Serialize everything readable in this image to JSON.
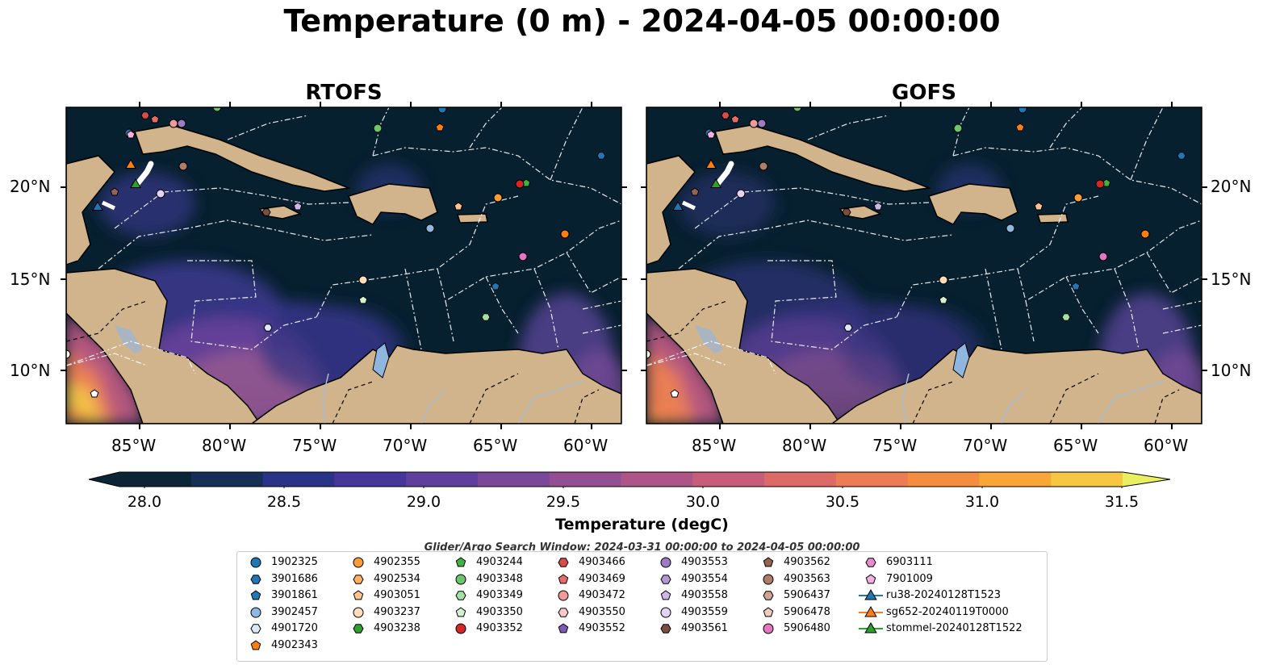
{
  "title": "Temperature (0 m) - 2024-04-05 00:00:00",
  "panels": [
    {
      "title": "RTOFS"
    },
    {
      "title": "GOFS"
    }
  ],
  "axes": {
    "lon_ticks": [
      "85°W",
      "80°W",
      "75°W",
      "70°W",
      "65°W",
      "60°W"
    ],
    "lat_ticks": [
      "20°N",
      "15°N",
      "10°N"
    ]
  },
  "colorbar": {
    "label": "Temperature (degC)",
    "ticks": [
      "28.0",
      "28.5",
      "29.0",
      "29.5",
      "30.0",
      "30.5",
      "31.0",
      "31.5"
    ],
    "colors": [
      "#0b2436",
      "#162f57",
      "#2a3487",
      "#46369a",
      "#5e3f9b",
      "#7a4898",
      "#944f94",
      "#ad5589",
      "#c65d7a",
      "#dc6b67",
      "#ec7c53",
      "#f48d40",
      "#f7a63a",
      "#f7c643",
      "#e9ef5e"
    ]
  },
  "search_window": "Glider/Argo Search Window: 2024-03-31 00:00:00 to 2024-04-05 00:00:00",
  "legend": [
    {
      "label": "1902325",
      "color": "#1f77b4",
      "shape": "circle"
    },
    {
      "label": "3901686",
      "color": "#1f77b4",
      "shape": "hexagon"
    },
    {
      "label": "3901861",
      "color": "#1f77b4",
      "shape": "pentagon"
    },
    {
      "label": "3902457",
      "color": "#8fb9e0",
      "shape": "circle"
    },
    {
      "label": "4901720",
      "color": "#dceaf8",
      "shape": "hexagon"
    },
    {
      "label": "4902343",
      "color": "#ff7f0e",
      "shape": "pentagon"
    },
    {
      "label": "4902355",
      "color": "#ff9b35",
      "shape": "circle"
    },
    {
      "label": "4902534",
      "color": "#ffae62",
      "shape": "hexagon"
    },
    {
      "label": "4903051",
      "color": "#ffc38f",
      "shape": "pentagon"
    },
    {
      "label": "4903237",
      "color": "#ffdcbc",
      "shape": "circle"
    },
    {
      "label": "4903238",
      "color": "#2ca02c",
      "shape": "hexagon"
    },
    {
      "label": "4903244",
      "color": "#3fb33f",
      "shape": "pentagon"
    },
    {
      "label": "4903348",
      "color": "#6cc76c",
      "shape": "circle"
    },
    {
      "label": "4903349",
      "color": "#a3e0a3",
      "shape": "hexagon"
    },
    {
      "label": "4903350",
      "color": "#d4f2d0",
      "shape": "pentagon"
    },
    {
      "label": "4903352",
      "color": "#d62728",
      "shape": "circle"
    },
    {
      "label": "4903466",
      "color": "#d94a4a",
      "shape": "hexagon"
    },
    {
      "label": "4903469",
      "color": "#e86a6a",
      "shape": "pentagon"
    },
    {
      "label": "4903472",
      "color": "#f2999a",
      "shape": "circle"
    },
    {
      "label": "4903550",
      "color": "#fbc9c8",
      "shape": "hexagon"
    },
    {
      "label": "4903552",
      "color": "#7f5cb3",
      "shape": "pentagon"
    },
    {
      "label": "4903553",
      "color": "#9c7dc4",
      "shape": "circle"
    },
    {
      "label": "4903554",
      "color": "#b498d6",
      "shape": "hexagon"
    },
    {
      "label": "4903558",
      "color": "#cdb6e8",
      "shape": "pentagon"
    },
    {
      "label": "4903559",
      "color": "#e5d3f5",
      "shape": "circle"
    },
    {
      "label": "4903561",
      "color": "#7b4f3f",
      "shape": "hexagon"
    },
    {
      "label": "4903562",
      "color": "#966350",
      "shape": "pentagon"
    },
    {
      "label": "4903563",
      "color": "#b07c6a",
      "shape": "circle"
    },
    {
      "label": "5906437",
      "color": "#d0a395",
      "shape": "hexagon"
    },
    {
      "label": "5906478",
      "color": "#f0cbbf",
      "shape": "pentagon"
    },
    {
      "label": "5906480",
      "color": "#e377c2",
      "shape": "circle"
    },
    {
      "label": "6903111",
      "color": "#e88ccf",
      "shape": "hexagon"
    },
    {
      "label": "7901009",
      "color": "#f3b0e0",
      "shape": "pentagon"
    },
    {
      "label": "ru38-20240128T1523",
      "color": "#1f77b4",
      "shape": "triangle"
    },
    {
      "label": "sg652-20240119T0000",
      "color": "#ff7f0e",
      "shape": "triangle"
    },
    {
      "label": "stommel-20240128T1522",
      "color": "#2ca02c",
      "shape": "triangle"
    }
  ]
}
